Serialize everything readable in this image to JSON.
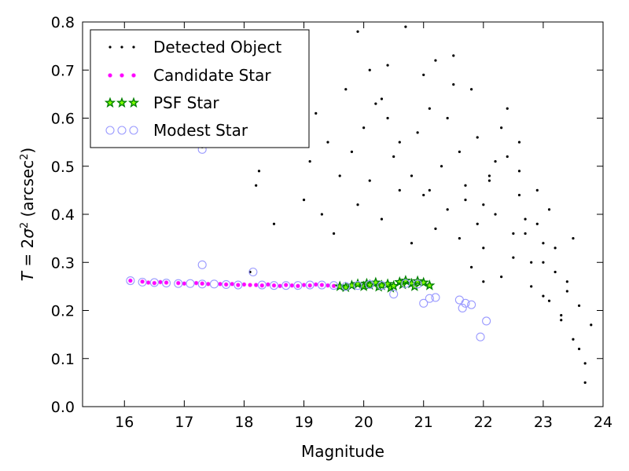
{
  "chart_data": {
    "type": "scatter",
    "title": "",
    "xlabel": "Magnitude",
    "ylabel_parts": {
      "lead": "T",
      "eq": " = 2",
      "sigma": "σ",
      "sq": "2",
      "unit_open": " (arcsec",
      "unit_sq": "2",
      "unit_close": ")"
    },
    "xlim": [
      15.3,
      24.0
    ],
    "ylim": [
      0.0,
      0.8
    ],
    "xticks": [
      16,
      17,
      18,
      19,
      20,
      21,
      22,
      23,
      24
    ],
    "xtick_labels": [
      "16",
      "17",
      "18",
      "19",
      "20",
      "21",
      "22",
      "23",
      "24"
    ],
    "yticks": [
      0.0,
      0.1,
      0.2,
      0.3,
      0.4,
      0.5,
      0.6,
      0.7,
      0.8
    ],
    "ytick_labels": [
      "0.0",
      "0.1",
      "0.2",
      "0.3",
      "0.4",
      "0.5",
      "0.6",
      "0.7",
      "0.8"
    ],
    "legend_position": "top-left",
    "colors": {
      "detected": "#000000",
      "candidate": "#ff00ff",
      "psf_edge": "#008000",
      "psf_fill": "#7fff00",
      "modest": "#9a9aff"
    },
    "series": [
      {
        "name": "Detected Object",
        "key": "detected",
        "marker": "dot",
        "x": [
          17.3,
          18.1,
          18.2,
          18.25,
          18.5,
          19.0,
          19.1,
          19.2,
          19.3,
          19.4,
          19.5,
          19.6,
          19.7,
          19.8,
          19.9,
          20.0,
          20.1,
          20.2,
          20.3,
          20.4,
          20.5,
          20.6,
          20.7,
          20.8,
          20.9,
          21.0,
          21.1,
          21.2,
          21.3,
          21.4,
          21.5,
          21.6,
          21.7,
          21.8,
          21.9,
          22.0,
          22.1,
          22.2,
          22.3,
          22.4,
          22.5,
          22.6,
          22.7,
          22.8,
          22.9,
          23.0,
          23.1,
          23.2,
          23.3,
          23.4,
          23.5,
          23.6,
          23.7,
          23.8,
          19.9,
          20.3,
          20.6,
          21.0,
          21.4,
          21.8,
          22.0,
          22.3,
          22.6,
          22.9,
          23.2,
          23.5,
          20.1,
          20.8,
          21.5,
          22.2,
          22.7,
          23.0,
          23.4,
          21.2,
          21.9,
          22.4,
          22.8,
          23.1,
          23.6,
          21.6,
          22.1,
          22.5,
          23.3,
          20.4,
          21.1,
          21.7,
          22.0,
          22.6,
          23.0,
          23.7
        ],
        "y": [
          0.54,
          0.28,
          0.46,
          0.49,
          0.38,
          0.43,
          0.51,
          0.61,
          0.4,
          0.55,
          0.36,
          0.48,
          0.66,
          0.53,
          0.42,
          0.58,
          0.47,
          0.63,
          0.39,
          0.71,
          0.52,
          0.45,
          0.79,
          0.34,
          0.57,
          0.44,
          0.62,
          0.37,
          0.5,
          0.41,
          0.73,
          0.35,
          0.46,
          0.29,
          0.56,
          0.33,
          0.48,
          0.4,
          0.27,
          0.52,
          0.31,
          0.44,
          0.36,
          0.25,
          0.38,
          0.3,
          0.22,
          0.33,
          0.18,
          0.26,
          0.14,
          0.21,
          0.09,
          0.17,
          0.78,
          0.64,
          0.55,
          0.69,
          0.6,
          0.66,
          0.42,
          0.58,
          0.49,
          0.45,
          0.28,
          0.35,
          0.7,
          0.48,
          0.67,
          0.51,
          0.39,
          0.34,
          0.24,
          0.72,
          0.38,
          0.62,
          0.3,
          0.41,
          0.12,
          0.53,
          0.47,
          0.36,
          0.19,
          0.6,
          0.45,
          0.43,
          0.26,
          0.55,
          0.23,
          0.05
        ]
      },
      {
        "name": "Candidate Star",
        "key": "candidate",
        "marker": "small-circle",
        "x": [
          16.1,
          16.3,
          16.4,
          16.5,
          16.6,
          16.7,
          16.9,
          17.0,
          17.2,
          17.3,
          17.4,
          17.6,
          17.7,
          17.8,
          17.9,
          18.0,
          18.1,
          18.2,
          18.3,
          18.4,
          18.5,
          18.6,
          18.7,
          18.8,
          18.9,
          19.0,
          19.1,
          19.2,
          19.3,
          19.4,
          19.5
        ],
        "y": [
          0.262,
          0.26,
          0.258,
          0.257,
          0.259,
          0.258,
          0.257,
          0.256,
          0.257,
          0.256,
          0.255,
          0.255,
          0.254,
          0.255,
          0.253,
          0.254,
          0.253,
          0.253,
          0.252,
          0.254,
          0.252,
          0.251,
          0.253,
          0.252,
          0.251,
          0.253,
          0.252,
          0.254,
          0.253,
          0.252,
          0.251
        ]
      },
      {
        "name": "PSF Star",
        "key": "psf",
        "marker": "star",
        "x": [
          19.6,
          19.7,
          19.8,
          19.9,
          20.0,
          20.05,
          20.1,
          20.2,
          20.25,
          20.3,
          20.4,
          20.45,
          20.5,
          20.6,
          20.65,
          20.7,
          20.8,
          20.85,
          20.9,
          21.0,
          21.1
        ],
        "y": [
          0.25,
          0.248,
          0.252,
          0.255,
          0.25,
          0.256,
          0.253,
          0.258,
          0.249,
          0.252,
          0.255,
          0.247,
          0.251,
          0.259,
          0.254,
          0.262,
          0.256,
          0.25,
          0.261,
          0.258,
          0.252
        ]
      },
      {
        "name": "Modest Star",
        "key": "modest",
        "marker": "open-circle",
        "x": [
          16.1,
          16.3,
          16.5,
          16.7,
          16.9,
          17.1,
          17.3,
          17.3,
          17.3,
          17.5,
          17.7,
          17.9,
          18.15,
          18.3,
          18.5,
          18.7,
          18.9,
          19.1,
          19.3,
          19.5,
          19.7,
          19.9,
          20.1,
          20.3,
          20.5,
          20.7,
          20.9,
          21.0,
          21.1,
          21.2,
          21.6,
          21.65,
          21.7,
          21.8,
          21.95,
          22.05
        ],
        "y": [
          0.262,
          0.259,
          0.258,
          0.257,
          0.256,
          0.256,
          0.295,
          0.535,
          0.255,
          0.255,
          0.254,
          0.253,
          0.28,
          0.253,
          0.252,
          0.252,
          0.252,
          0.253,
          0.253,
          0.252,
          0.25,
          0.252,
          0.254,
          0.252,
          0.234,
          0.256,
          0.255,
          0.215,
          0.225,
          0.227,
          0.222,
          0.205,
          0.215,
          0.212,
          0.145,
          0.178
        ]
      }
    ]
  }
}
